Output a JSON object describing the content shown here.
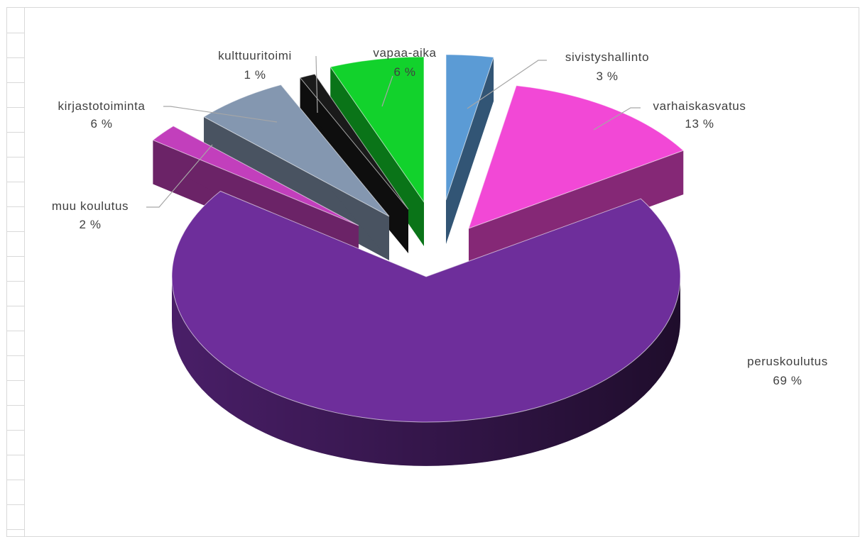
{
  "chart_data": {
    "type": "pie",
    "title": "",
    "style": "3d-exploded",
    "slices": [
      {
        "label": "sivistyshallinto",
        "pct_label": "3 %",
        "value": 3,
        "color": "#5b9bd5"
      },
      {
        "label": "varhaiskasvatus",
        "pct_label": "13 %",
        "value": 13,
        "color": "#f248d6"
      },
      {
        "label": "peruskoulutus",
        "pct_label": "69 %",
        "value": 69,
        "color": "#6e2e9b"
      },
      {
        "label": "muu koulutus",
        "pct_label": "2 %",
        "value": 2,
        "color": "#c23fbc"
      },
      {
        "label": "kirjastotoiminta",
        "pct_label": "6 %",
        "value": 6,
        "color": "#8497b0"
      },
      {
        "label": "kulttuuritoimi",
        "pct_label": "1 %",
        "value": 1,
        "color": "#1a1a1a"
      },
      {
        "label": "vapaa-aika",
        "pct_label": "6 %",
        "value": 6,
        "color": "#12d22c"
      }
    ]
  }
}
